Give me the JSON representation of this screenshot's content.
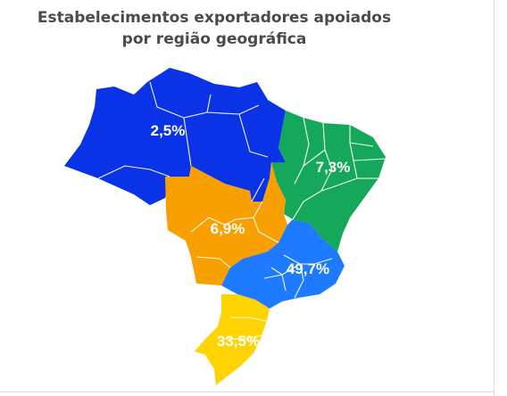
{
  "title": {
    "line1": "Estabelecimentos exportadores apoiados",
    "line2": "por região geográfica"
  },
  "regions": [
    {
      "id": "norte",
      "value": "2,5%",
      "color": "#0a33e8"
    },
    {
      "id": "nordeste",
      "value": "7,3%",
      "color": "#16a85a"
    },
    {
      "id": "centro-oeste",
      "value": "6,9%",
      "color": "#f7a000"
    },
    {
      "id": "sudeste",
      "value": "49,7%",
      "color": "#1e7bff"
    },
    {
      "id": "sul",
      "value": "33,5%",
      "color": "#ffd400"
    }
  ]
}
